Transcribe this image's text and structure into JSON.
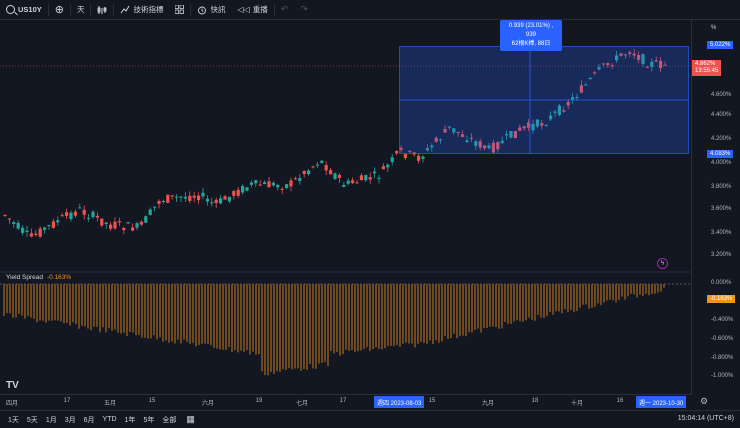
{
  "toolbar": {
    "symbol": "US10Y",
    "interval": "天",
    "indicators_label": "技術指標",
    "alert_label": "快訊",
    "replay_label": "重播"
  },
  "price_axis": {
    "unit": "%",
    "ticks": [
      "5.022%",
      "4.862%",
      "4.600%",
      "4.400%",
      "4.200%",
      "4.083%",
      "4.000%",
      "3.800%",
      "3.600%",
      "3.400%",
      "3.200%"
    ],
    "last_price": "4.862%",
    "countdown": "13:55:45",
    "range_top": "5.022%",
    "range_bottom": "4.083%"
  },
  "measure_tooltip": {
    "line1": "0.939 (23.01%) , 939",
    "line2": "62根K棒, 88日"
  },
  "indicator": {
    "name": "Yield Spread",
    "value": "-0.163%",
    "ticks": [
      "0.000%",
      "-0.163%",
      "-0.400%",
      "-0.600%",
      "-0.800%",
      "-1.000%"
    ]
  },
  "time_axis": {
    "labels": [
      "四月",
      "17",
      "五月",
      "15",
      "六月",
      "19",
      "七月",
      "17",
      "15",
      "九月",
      "18",
      "十月",
      "16"
    ],
    "highlight_start": "週四 2023-08-03",
    "highlight_end": "週一 2023-10-30"
  },
  "bottom_bar": {
    "ranges": [
      "1天",
      "5天",
      "1月",
      "3月",
      "6月",
      "YTD",
      "1年",
      "5年",
      "全部"
    ],
    "clock": "15:04:14 (UTC+8)"
  },
  "colors": {
    "up": "#26a69a",
    "down": "#ef5350",
    "accent": "#2962ff",
    "spread": "#f7931a"
  }
}
